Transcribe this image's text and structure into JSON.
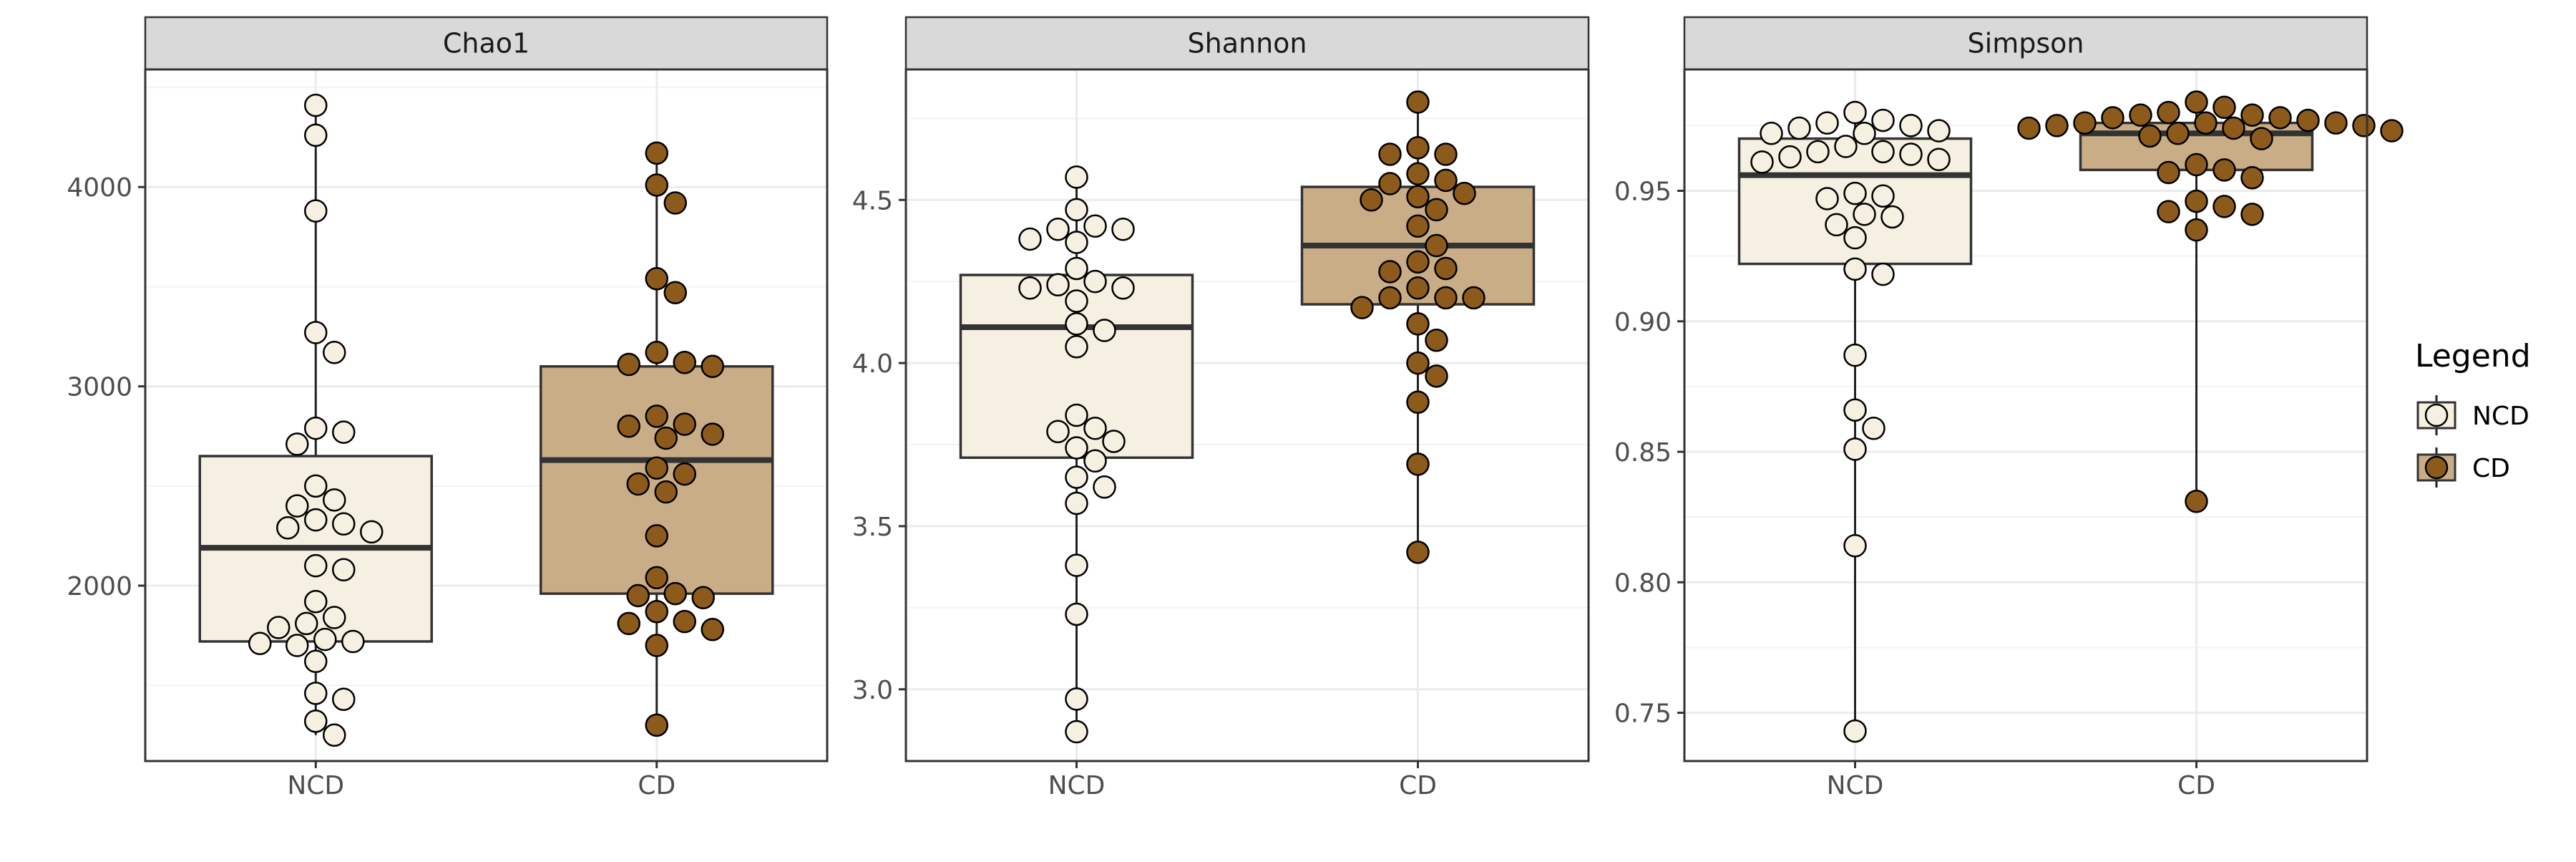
{
  "chart_data": [
    {
      "type": "box",
      "title": "Chao1",
      "categories": [
        "NCD",
        "CD"
      ],
      "ylim": [
        1120,
        4590
      ],
      "yticks": [
        2000,
        3000,
        4000
      ],
      "ytick_labels": [
        "2000",
        "3000",
        "4000"
      ],
      "grid": true,
      "boxes": [
        {
          "name": "NCD",
          "q1": 1720,
          "median": 2190,
          "q3": 2650,
          "whisker_low": 1250,
          "whisker_high": 4410
        },
        {
          "name": "CD",
          "q1": 1960,
          "median": 2630,
          "q3": 3100,
          "whisker_low": 1300,
          "whisker_high": 4170
        }
      ],
      "points": [
        [
          4410,
          4260,
          3880,
          3270,
          3170,
          2790,
          2770,
          2710,
          2500,
          2430,
          2400,
          2330,
          2310,
          2290,
          2270,
          2100,
          2080,
          1920,
          1840,
          1810,
          1790,
          1730,
          1720,
          1710,
          1700,
          1620,
          1460,
          1430,
          1320,
          1250
        ],
        [
          4170,
          4010,
          3920,
          3540,
          3470,
          3170,
          3120,
          3110,
          3100,
          2850,
          2810,
          2800,
          2760,
          2740,
          2590,
          2560,
          2510,
          2470,
          2250,
          2040,
          1960,
          1950,
          1940,
          1870,
          1820,
          1810,
          1780,
          1700,
          1300
        ]
      ]
    },
    {
      "type": "box",
      "title": "Shannon",
      "categories": [
        "NCD",
        "CD"
      ],
      "ylim": [
        2.78,
        4.9
      ],
      "yticks": [
        3.0,
        3.5,
        4.0,
        4.5
      ],
      "ytick_labels": [
        "3.0",
        "3.5",
        "4.0",
        "4.5"
      ],
      "grid": true,
      "boxes": [
        {
          "name": "NCD",
          "q1": 3.71,
          "median": 4.11,
          "q3": 4.27,
          "whisker_low": 2.87,
          "whisker_high": 4.57
        },
        {
          "name": "CD",
          "q1": 4.18,
          "median": 4.36,
          "q3": 4.54,
          "whisker_low": 3.42,
          "whisker_high": 4.8
        }
      ],
      "points": [
        [
          4.57,
          4.47,
          4.42,
          4.41,
          4.41,
          4.38,
          4.37,
          4.29,
          4.25,
          4.24,
          4.23,
          4.23,
          4.19,
          4.12,
          4.1,
          4.05,
          3.84,
          3.8,
          3.79,
          3.76,
          3.74,
          3.7,
          3.65,
          3.62,
          3.57,
          3.38,
          3.23,
          2.97,
          2.87
        ],
        [
          4.8,
          4.66,
          4.64,
          4.64,
          4.58,
          4.56,
          4.55,
          4.52,
          4.51,
          4.5,
          4.47,
          4.42,
          4.36,
          4.31,
          4.29,
          4.28,
          4.23,
          4.2,
          4.2,
          4.2,
          4.17,
          4.12,
          4.07,
          4.0,
          3.96,
          3.88,
          3.69,
          3.42
        ]
      ]
    },
    {
      "type": "box",
      "title": "Simpson",
      "categories": [
        "NCD",
        "CD"
      ],
      "ylim": [
        0.7315,
        0.9965
      ],
      "yticks": [
        0.75,
        0.8,
        0.85,
        0.9,
        0.95
      ],
      "ytick_labels": [
        "0.75",
        "0.80",
        "0.85",
        "0.90",
        "0.95"
      ],
      "grid": true,
      "boxes": [
        {
          "name": "NCD",
          "q1": 0.922,
          "median": 0.956,
          "q3": 0.97,
          "whisker_low": 0.743,
          "whisker_high": 0.98
        },
        {
          "name": "CD",
          "q1": 0.958,
          "median": 0.972,
          "q3": 0.976,
          "whisker_low": 0.831,
          "whisker_high": 0.984
        }
      ],
      "points": [
        [
          0.98,
          0.977,
          0.976,
          0.975,
          0.974,
          0.973,
          0.972,
          0.972,
          0.967,
          0.965,
          0.965,
          0.964,
          0.963,
          0.962,
          0.961,
          0.949,
          0.948,
          0.947,
          0.941,
          0.94,
          0.937,
          0.932,
          0.92,
          0.918,
          0.887,
          0.866,
          0.859,
          0.851,
          0.814,
          0.743
        ],
        [
          0.984,
          0.982,
          0.98,
          0.979,
          0.979,
          0.978,
          0.978,
          0.977,
          0.976,
          0.976,
          0.976,
          0.975,
          0.975,
          0.974,
          0.974,
          0.973,
          0.972,
          0.971,
          0.97,
          0.96,
          0.958,
          0.957,
          0.955,
          0.946,
          0.944,
          0.942,
          0.941,
          0.935,
          0.831
        ]
      ]
    }
  ],
  "legend": {
    "title": "Legend",
    "placement": "right",
    "items": [
      {
        "label": "NCD",
        "color": "#f5f0e1"
      },
      {
        "label": "CD",
        "color": "#8c5a1b"
      }
    ]
  },
  "colors": {
    "NCD_box": "#f5f0e1",
    "CD_box": "#c9ad87",
    "NCD_point": "#f5f0e1",
    "CD_point": "#8c5a1b",
    "outline": "#000000",
    "strip": "#d9d9d9",
    "grid": "#ebebeb"
  }
}
